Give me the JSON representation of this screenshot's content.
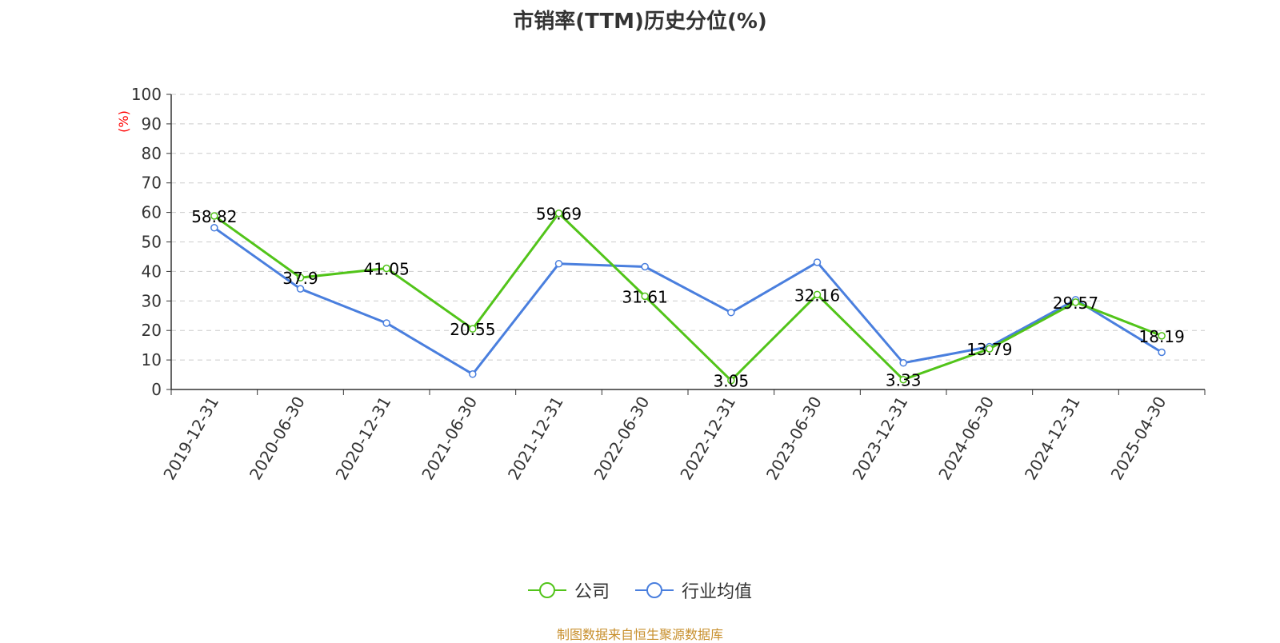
{
  "colors": {
    "company": "#52c41a",
    "industry": "#4a7fde",
    "source": "#c8902e",
    "ylabel": "#ff0000"
  },
  "chart_data": {
    "type": "line",
    "title": "市销率(TTM)历史分位(%)",
    "ylabel": "(%)",
    "xlabel": "",
    "ylim": [
      0,
      100
    ],
    "yticks": [
      0,
      10,
      20,
      30,
      40,
      50,
      60,
      70,
      80,
      90,
      100
    ],
    "grid": true,
    "legend_position": "bottom",
    "categories": [
      "2019-12-31",
      "2020-06-30",
      "2020-12-31",
      "2021-06-30",
      "2021-12-31",
      "2022-06-30",
      "2022-12-31",
      "2023-06-30",
      "2023-12-31",
      "2024-06-30",
      "2024-12-31",
      "2025-04-30"
    ],
    "series": [
      {
        "name": "公司",
        "values": [
          58.82,
          37.9,
          41.05,
          20.55,
          59.69,
          31.61,
          3.05,
          32.16,
          3.33,
          13.79,
          29.57,
          18.19
        ],
        "labels": [
          "58.82",
          "37.9",
          "41.05",
          "20.55",
          "59.69",
          "31.61",
          "3.05",
          "32.16",
          "3.33",
          "13.79",
          "29.57",
          "18.19"
        ]
      },
      {
        "name": "行业均值",
        "values": [
          54.8,
          34.1,
          22.5,
          5.2,
          42.6,
          41.6,
          26.1,
          43.1,
          9.0,
          14.5,
          30.4,
          12.6
        ]
      }
    ]
  },
  "footer": {
    "source": "制图数据来自恒生聚源数据库"
  }
}
